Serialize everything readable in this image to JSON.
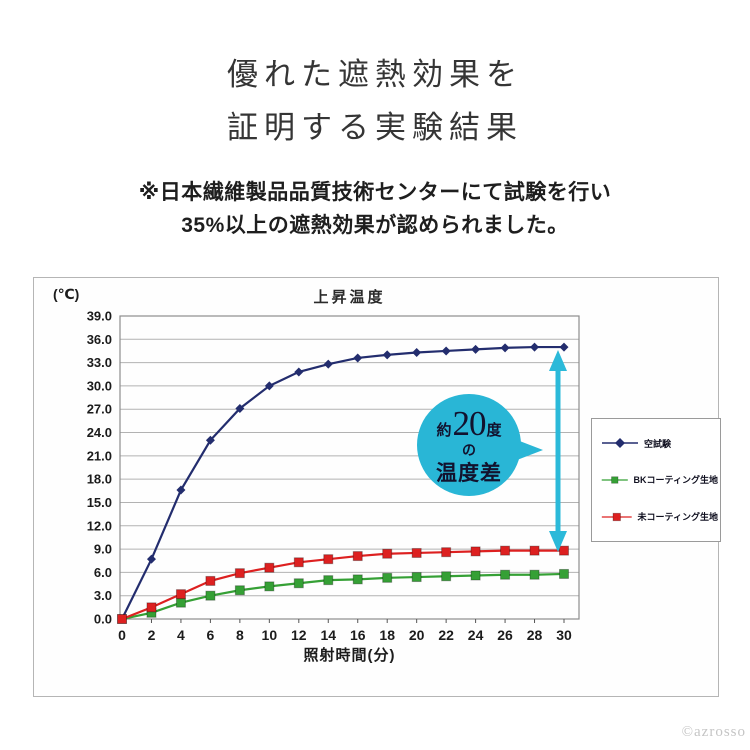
{
  "page": {
    "title_line1": "優れた遮熱効果を",
    "title_line2": "証明する実験結果",
    "subtitle_line1": "※日本繊維製品品質技術センターにて試験を行い",
    "subtitle_line2": "35%以上の遮熱効果が認められました。",
    "watermark": "©azrosso"
  },
  "chart_data": {
    "type": "line",
    "title": "上昇温度",
    "y_unit_label": "(℃)",
    "xlabel": "照射時間(分)",
    "ylim": [
      0,
      39
    ],
    "ytick_step": 3,
    "ytick_decimals": 1,
    "grid": true,
    "legend_position": "right",
    "x": [
      0,
      2,
      4,
      6,
      8,
      10,
      12,
      14,
      16,
      18,
      20,
      22,
      24,
      26,
      28,
      30
    ],
    "series": [
      {
        "name": "空試験",
        "color": "#232d6e",
        "marker": "diamond",
        "values": [
          0.0,
          7.7,
          16.6,
          23.0,
          27.1,
          30.0,
          31.8,
          32.8,
          33.6,
          34.0,
          34.3,
          34.5,
          34.7,
          34.9,
          35.0,
          35.0
        ]
      },
      {
        "name": "BKコーティング生地",
        "color": "#35a035",
        "marker": "square",
        "values": [
          0.0,
          0.8,
          2.1,
          3.0,
          3.7,
          4.2,
          4.6,
          5.0,
          5.1,
          5.3,
          5.4,
          5.5,
          5.6,
          5.7,
          5.7,
          5.8
        ]
      },
      {
        "name": "未コーティング生地",
        "color": "#dd2020",
        "marker": "square",
        "values": [
          0.0,
          1.5,
          3.2,
          4.9,
          5.9,
          6.6,
          7.3,
          7.7,
          8.1,
          8.4,
          8.5,
          8.6,
          8.7,
          8.8,
          8.8,
          8.8
        ]
      }
    ],
    "annotation": {
      "line1_prefix": "約",
      "line1_number": "20",
      "line1_suffix": "度",
      "line2": "の",
      "line3": "温度差",
      "bubble_color": "#29b6d6",
      "arrow_color": "#2bb9d9"
    }
  }
}
